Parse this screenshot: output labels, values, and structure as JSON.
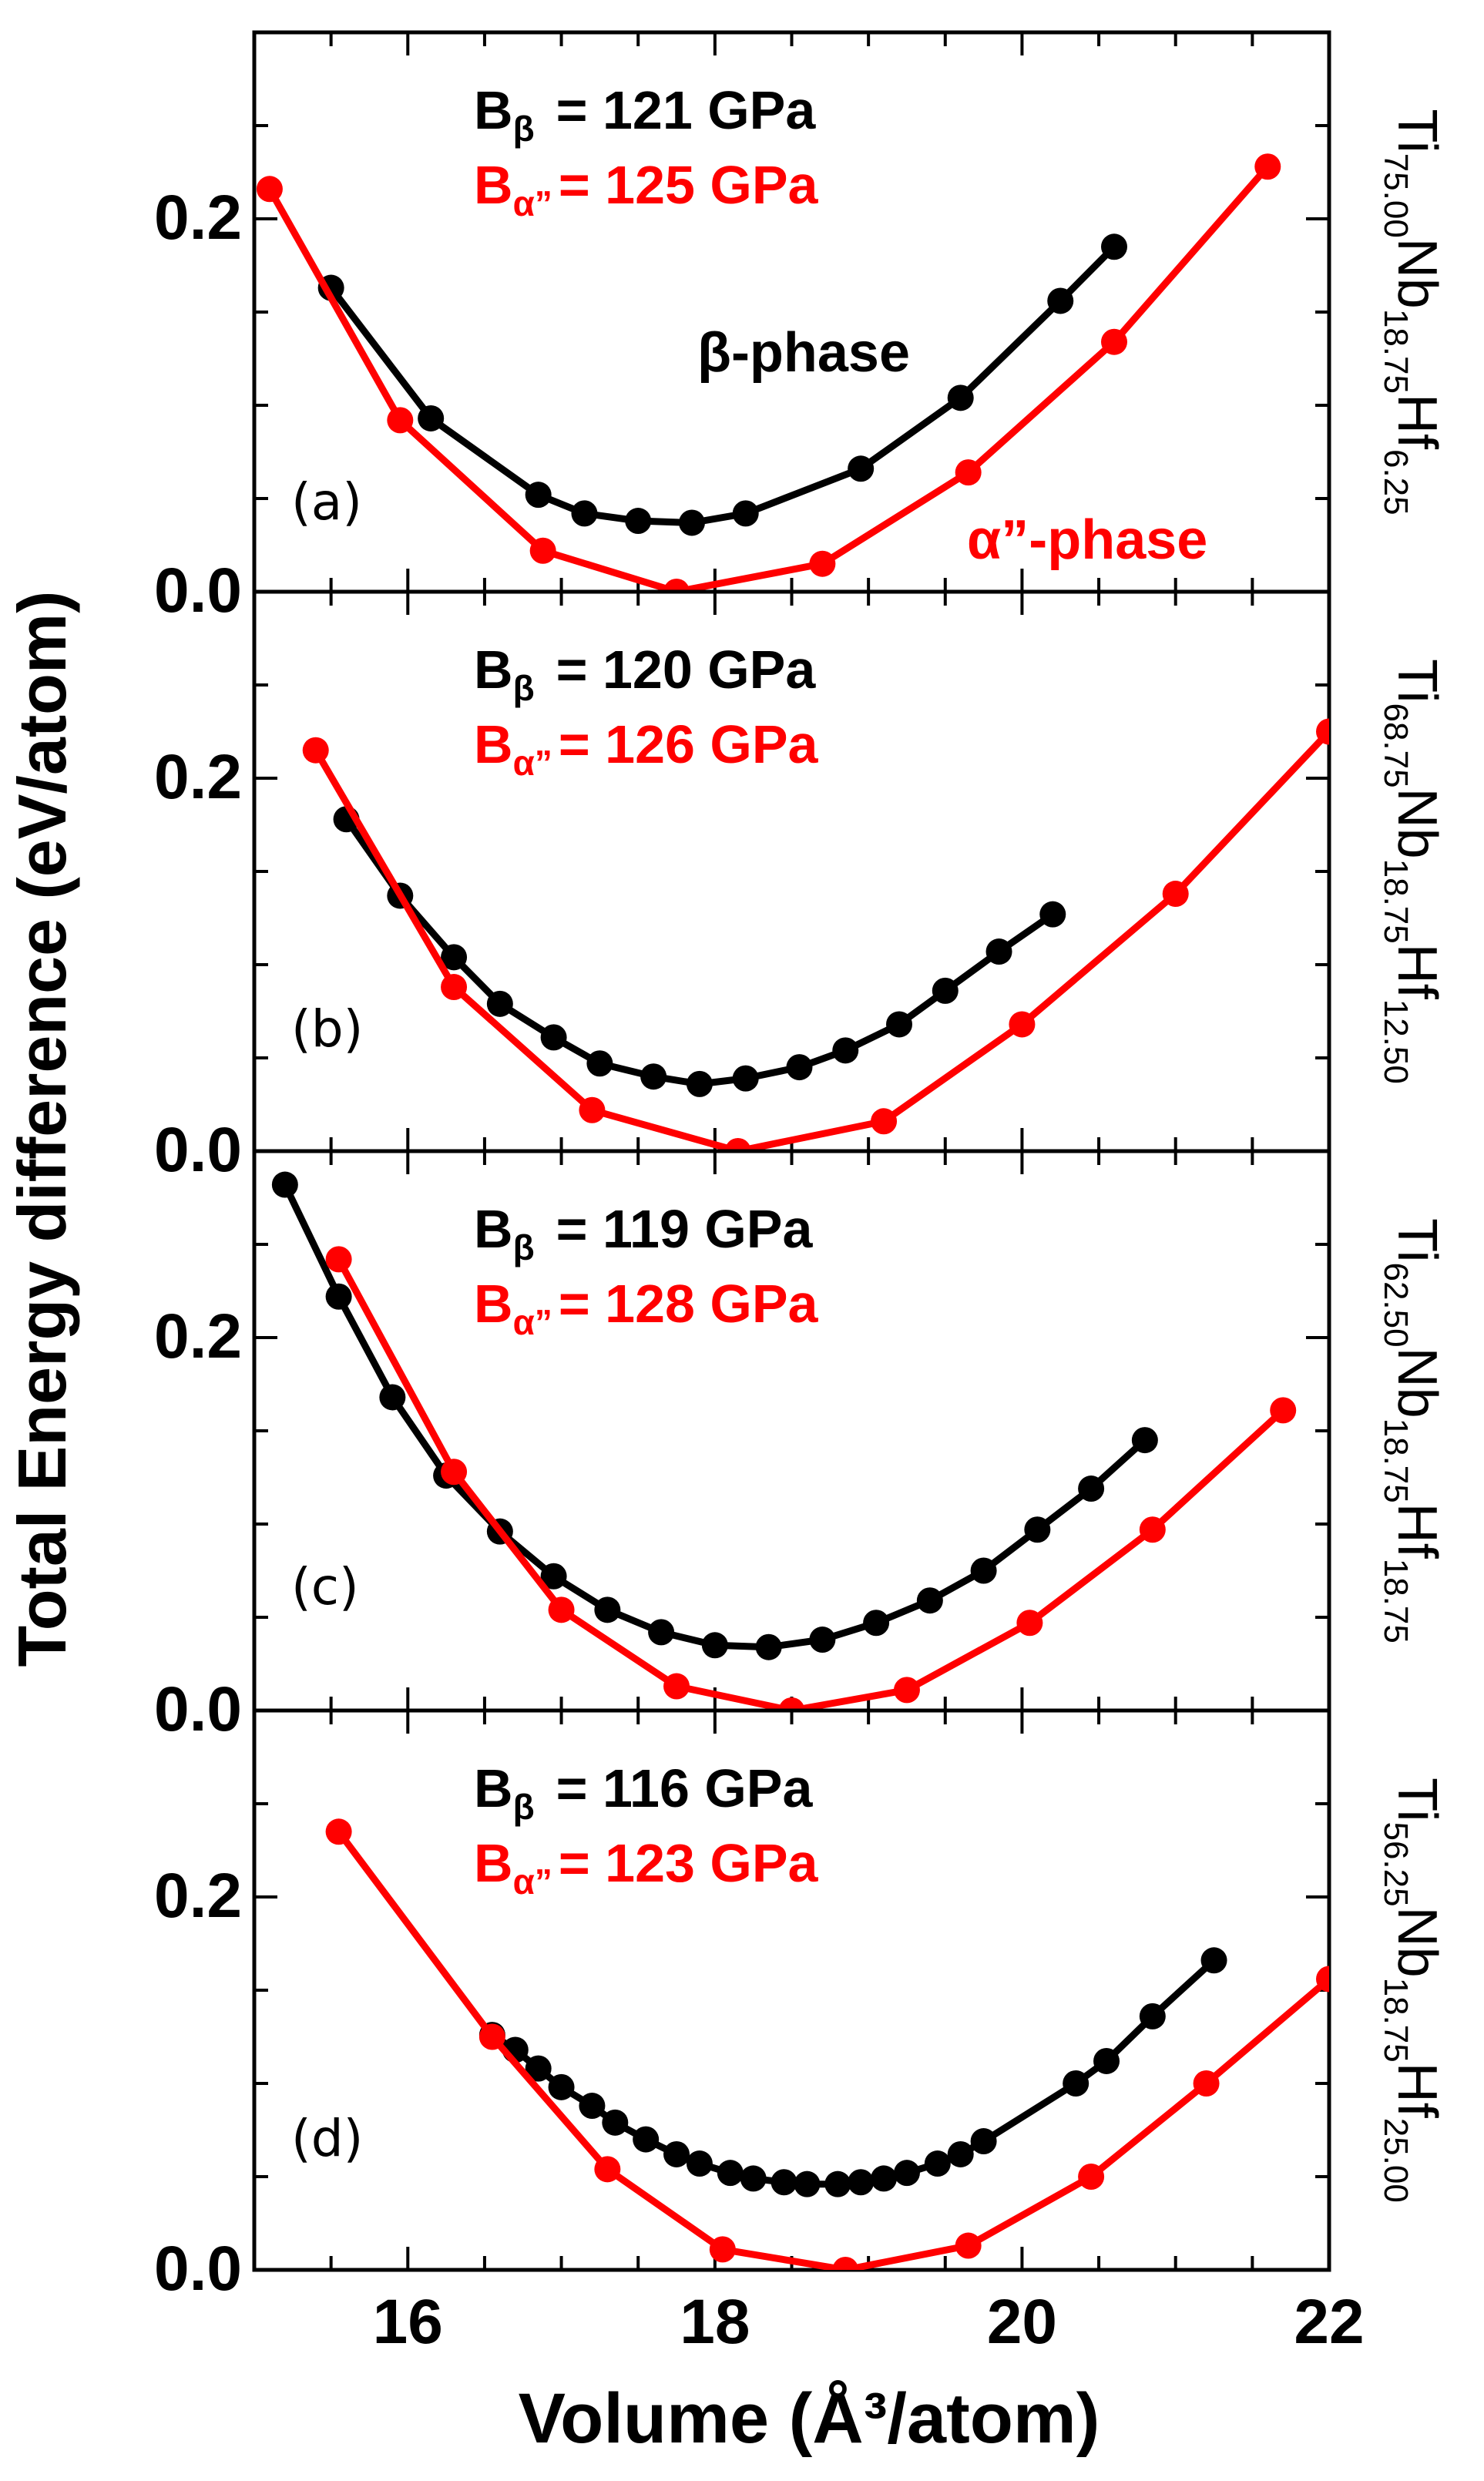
{
  "chart_data": {
    "type": "line",
    "xlabel": "Volume (Å³/atom)",
    "ylabel": "Total Energy difference (eV/atom)",
    "xlim": [
      15,
      22
    ],
    "ylim": [
      0,
      0.3
    ],
    "x_ticks": [
      "16",
      "18",
      "20",
      "22"
    ],
    "y_ticks": [
      "0.0",
      "0.2"
    ],
    "phase_labels": {
      "beta": "β-phase",
      "alpha": "α”-phase"
    },
    "colors": {
      "beta": "#000000",
      "alpha": "#ff0000"
    },
    "panels": [
      {
        "label": "(a)",
        "composition": {
          "e1": "Ti",
          "s1": "75.00",
          "e2": "Nb",
          "s2": "18.75",
          "e3": "Hf",
          "s3": "6.25"
        },
        "bulk_beta": {
          "sym": "B",
          "sub": "β",
          "text": "= 121 GPa"
        },
        "bulk_alpha": {
          "sym": "B",
          "sub": "α”",
          "text": "= 125 GPa"
        },
        "series": [
          {
            "name": "β-phase",
            "x": [
              15.5,
              16.15,
              16.85,
              17.15,
              17.5,
              17.85,
              18.2,
              18.95,
              19.6,
              20.25,
              20.6
            ],
            "y": [
              0.163,
              0.093,
              0.052,
              0.042,
              0.038,
              0.037,
              0.042,
              0.066,
              0.104,
              0.156,
              0.185
            ]
          },
          {
            "name": "α”-phase",
            "x": [
              15.1,
              15.95,
              16.88,
              17.75,
              18.7,
              19.65,
              20.6,
              21.6
            ],
            "y": [
              0.216,
              0.092,
              0.022,
              0.0,
              0.015,
              0.064,
              0.134,
              0.228
            ]
          }
        ]
      },
      {
        "label": "(b)",
        "composition": {
          "e1": "Ti",
          "s1": "68.75",
          "e2": "Nb",
          "s2": "18.75",
          "e3": "Hf",
          "s3": "12.50"
        },
        "bulk_beta": {
          "sym": "B",
          "sub": "β",
          "text": "= 120 GPa"
        },
        "bulk_alpha": {
          "sym": "B",
          "sub": "α”",
          "text": "= 126 GPa"
        },
        "series": [
          {
            "name": "β-phase",
            "x": [
              15.6,
              15.95,
              16.3,
              16.6,
              16.95,
              17.25,
              17.6,
              17.9,
              18.2,
              18.55,
              18.85,
              19.2,
              19.5,
              19.85,
              20.2
            ],
            "y": [
              0.178,
              0.137,
              0.104,
              0.079,
              0.061,
              0.047,
              0.04,
              0.036,
              0.039,
              0.045,
              0.054,
              0.068,
              0.086,
              0.107,
              0.127
            ]
          },
          {
            "name": "α”-phase",
            "x": [
              15.4,
              16.3,
              17.2,
              18.15,
              19.1,
              20.0,
              21.0,
              22.0
            ],
            "y": [
              0.215,
              0.088,
              0.022,
              0.0,
              0.016,
              0.068,
              0.138,
              0.225
            ]
          }
        ]
      },
      {
        "label": "(c)",
        "composition": {
          "e1": "Ti",
          "s1": "62.50",
          "e2": "Nb",
          "s2": "18.75",
          "e3": "Hf",
          "s3": "18.75"
        },
        "bulk_beta": {
          "sym": "B",
          "sub": "β",
          "text": "= 119 GPa"
        },
        "bulk_alpha": {
          "sym": "B",
          "sub": "α”",
          "text": "= 128 GPa"
        },
        "series": [
          {
            "name": "β-phase",
            "x": [
              15.2,
              15.55,
              15.9,
              16.25,
              16.6,
              16.95,
              17.3,
              17.65,
              18.0,
              18.35,
              18.7,
              19.05,
              19.4,
              19.75,
              20.1,
              20.45,
              20.8
            ],
            "y": [
              0.282,
              0.222,
              0.168,
              0.126,
              0.096,
              0.072,
              0.054,
              0.042,
              0.035,
              0.034,
              0.038,
              0.047,
              0.059,
              0.075,
              0.097,
              0.119,
              0.145
            ]
          },
          {
            "name": "α”-phase",
            "x": [
              15.55,
              16.3,
              17.0,
              17.75,
              18.5,
              19.25,
              20.05,
              20.85,
              21.7
            ],
            "y": [
              0.242,
              0.128,
              0.054,
              0.013,
              0.0,
              0.011,
              0.047,
              0.097,
              0.161
            ]
          }
        ]
      },
      {
        "label": "(d)",
        "composition": {
          "e1": "Ti",
          "s1": "56.25",
          "e2": "Nb",
          "s2": "18.75",
          "e3": "Hf",
          "s3": "25.00"
        },
        "bulk_beta": {
          "sym": "B",
          "sub": "β",
          "text": "=  116 GPa"
        },
        "bulk_alpha": {
          "sym": "B",
          "sub": "α”",
          "text": "=  123 GPa"
        },
        "series": [
          {
            "name": "β-phase",
            "x": [
              16.55,
              16.7,
              16.85,
              17.0,
              17.2,
              17.35,
              17.55,
              17.75,
              17.9,
              18.1,
              18.25,
              18.45,
              18.6,
              18.8,
              18.95,
              19.1,
              19.25,
              19.45,
              19.6,
              19.75,
              20.35,
              20.55,
              20.85,
              21.25
            ],
            "y": [
              0.126,
              0.118,
              0.108,
              0.098,
              0.088,
              0.079,
              0.07,
              0.062,
              0.057,
              0.052,
              0.049,
              0.047,
              0.046,
              0.046,
              0.047,
              0.049,
              0.052,
              0.057,
              0.062,
              0.069,
              0.1,
              0.112,
              0.136,
              0.166
            ]
          },
          {
            "name": "α”-phase",
            "x": [
              15.55,
              16.55,
              17.3,
              18.05,
              18.85,
              19.65,
              20.45,
              21.2,
              22.0
            ],
            "y": [
              0.235,
              0.125,
              0.054,
              0.011,
              0.0,
              0.013,
              0.05,
              0.1,
              0.156
            ]
          }
        ]
      }
    ]
  }
}
